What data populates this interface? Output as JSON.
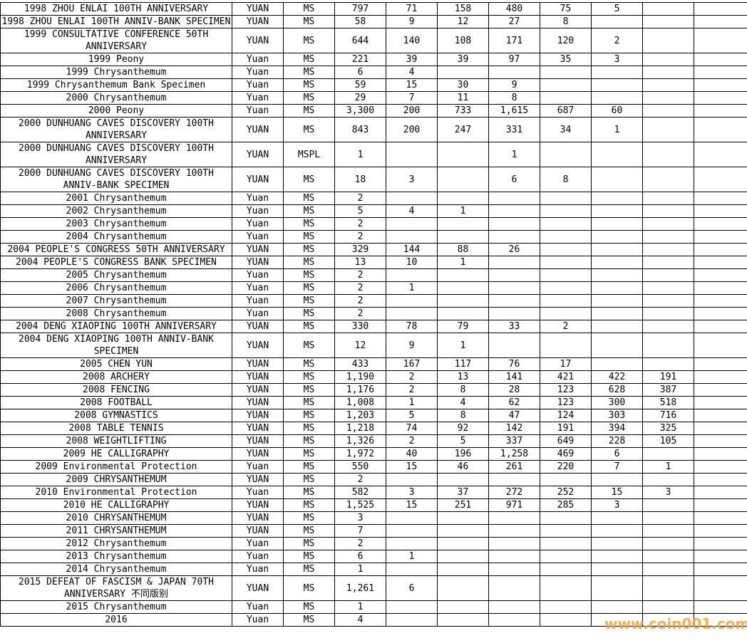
{
  "table": {
    "rows": [
      [
        "1998 ZHOU ENLAI 100TH ANNIVERSARY",
        "YUAN",
        "MS",
        "797",
        "71",
        "158",
        "480",
        "75",
        "5"
      ],
      [
        "1998 ZHOU ENLAI 100TH ANNIV-BANK SPECIMEN",
        "YUAN",
        "MS",
        "58",
        "9",
        "12",
        "27",
        "8"
      ],
      [
        "1999 CONSULTATIVE CONFERENCE 50TH ANNIVERSARY",
        "YUAN",
        "MS",
        "644",
        "140",
        "108",
        "171",
        "120",
        "2"
      ],
      [
        "1999 Peony",
        "Yuan",
        "MS",
        "221",
        "39",
        "39",
        "97",
        "35",
        "3"
      ],
      [
        "1999 Chrysanthemum",
        "Yuan",
        "MS",
        "6",
        "4"
      ],
      [
        "1999 Chrysanthemum Bank Specimen",
        "Yuan",
        "MS",
        "59",
        "15",
        "30",
        "9"
      ],
      [
        "2000 Chrysanthemum",
        "Yuan",
        "MS",
        "29",
        "7",
        "11",
        "8"
      ],
      [
        "2000 Peony",
        "Yuan",
        "MS",
        "3,300",
        "200",
        "733",
        "1,615",
        "687",
        "60"
      ],
      [
        "2000 DUNHUANG CAVES DISCOVERY 100TH ANNIVERSARY",
        "YUAN",
        "MS",
        "843",
        "200",
        "247",
        "331",
        "34",
        "1"
      ],
      [
        "2000 DUNHUANG CAVES DISCOVERY 100TH ANNIVERSARY",
        "YUAN",
        "MSPL",
        "1",
        null,
        null,
        "1"
      ],
      [
        "2000 DUNHUANG CAVES DISCOVERY 100TH ANNIV-BANK SPECIMEN",
        "YUAN",
        "MS",
        "18",
        "3",
        null,
        "6",
        "8"
      ],
      [
        "2001 Chrysanthemum",
        "Yuan",
        "MS",
        "2"
      ],
      [
        "2002 Chrysanthemum",
        "Yuan",
        "MS",
        "5",
        "4",
        "1"
      ],
      [
        "2003 Chrysanthemum",
        "Yuan",
        "MS",
        "2"
      ],
      [
        "2004 Chrysanthemum",
        "Yuan",
        "MS",
        "2"
      ],
      [
        "2004 PEOPLE'S CONGRESS 50TH ANNIVERSARY",
        "YUAN",
        "MS",
        "329",
        "144",
        "88",
        "26"
      ],
      [
        "2004 PEOPLE'S CONGRESS BANK SPECIMEN",
        "YUAN",
        "MS",
        "13",
        "10",
        "1"
      ],
      [
        "2005 Chrysanthemum",
        "Yuan",
        "MS",
        "2"
      ],
      [
        "2006 Chrysanthemum",
        "Yuan",
        "MS",
        "2",
        "1"
      ],
      [
        "2007 Chrysanthemum",
        "Yuan",
        "MS",
        "2"
      ],
      [
        "2008 Chrysanthemum",
        "Yuan",
        "MS",
        "2"
      ],
      [
        "2004 DENG XIAOPING 100TH ANNIVERSARY",
        "YUAN",
        "MS",
        "330",
        "78",
        "79",
        "33",
        "2"
      ],
      [
        "2004 DENG XIAOPING 100TH ANNIV-BANK SPECIMEN",
        "YUAN",
        "MS",
        "12",
        "9",
        "1"
      ],
      [
        "2005 CHEN YUN",
        "YUAN",
        "MS",
        "433",
        "167",
        "117",
        "76",
        "17"
      ],
      [
        "2008 ARCHERY",
        "YUAN",
        "MS",
        "1,190",
        "2",
        "13",
        "141",
        "421",
        "422",
        "191"
      ],
      [
        "2008 FENCING",
        "YUAN",
        "MS",
        "1,176",
        "2",
        "8",
        "28",
        "123",
        "628",
        "387"
      ],
      [
        "2008 FOOTBALL",
        "YUAN",
        "MS",
        "1,008",
        "1",
        "4",
        "62",
        "123",
        "300",
        "518"
      ],
      [
        "2008 GYMNASTICS",
        "YUAN",
        "MS",
        "1,203",
        "5",
        "8",
        "47",
        "124",
        "303",
        "716"
      ],
      [
        "2008 TABLE TENNIS",
        "YUAN",
        "MS",
        "1,218",
        "74",
        "92",
        "142",
        "191",
        "394",
        "325"
      ],
      [
        "2008 WEIGHTLIFTING",
        "YUAN",
        "MS",
        "1,326",
        "2",
        "5",
        "337",
        "649",
        "228",
        "105"
      ],
      [
        "2009 HE CALLIGRAPHY",
        "YUAN",
        "MS",
        "1,972",
        "40",
        "196",
        "1,258",
        "469",
        "6"
      ],
      [
        "2009 Environmental Protection",
        "Yuan",
        "MS",
        "550",
        "15",
        "46",
        "261",
        "220",
        "7",
        "1"
      ],
      [
        "2009 CHRYSANTHEMUM",
        "YUAN",
        "MS",
        "2"
      ],
      [
        "2010 Environmental Protection",
        "Yuan",
        "MS",
        "582",
        "3",
        "37",
        "272",
        "252",
        "15",
        "3"
      ],
      [
        "2010 HE CALLIGRAPHY",
        "YUAN",
        "MS",
        "1,525",
        "15",
        "251",
        "971",
        "285",
        "3"
      ],
      [
        "2010 CHRYSANTHEMUM",
        "YUAN",
        "MS",
        "3"
      ],
      [
        "2011 CHRYSANTHEMUM",
        "YUAN",
        "MS",
        "7"
      ],
      [
        "2012 Chrysanthemum",
        "Yuan",
        "MS",
        "2"
      ],
      [
        "2013 Chrysanthemum",
        "Yuan",
        "MS",
        "6",
        "1"
      ],
      [
        "2014 Chrysanthemum",
        "Yuan",
        "MS",
        "1"
      ],
      [
        "2015 DEFEAT OF FASCISM & JAPAN 70TH ANNIVERSARY 不同版别",
        "YUAN",
        "MS",
        "1,261",
        "6"
      ],
      [
        "2015 Chrysanthemum",
        "Yuan",
        "MS",
        "1"
      ],
      [
        "2016",
        "Yuan",
        "MS",
        "4"
      ]
    ]
  },
  "watermark": "www.coin001.com"
}
